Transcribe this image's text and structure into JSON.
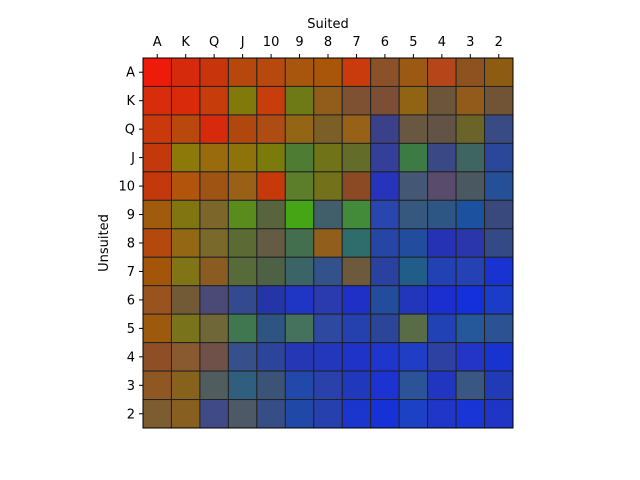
{
  "chart_data": {
    "type": "heatmap",
    "title": "",
    "xlabel": "Suited",
    "ylabel": "Unsuited",
    "x_ticks_position": "top",
    "grid": false,
    "legend": "none",
    "categories_x": [
      "A",
      "K",
      "Q",
      "J",
      "10",
      "9",
      "8",
      "7",
      "6",
      "5",
      "4",
      "3",
      "2"
    ],
    "categories_y": [
      "A",
      "K",
      "Q",
      "J",
      "10",
      "9",
      "8",
      "7",
      "6",
      "5",
      "4",
      "3",
      "2"
    ],
    "cell_border_color": "#222222",
    "cells": [
      [
        "#ee1a0a",
        "#d52b0c",
        "#c8350c",
        "#b7480d",
        "#b7480e",
        "#a8550d",
        "#a9560b",
        "#c93b0c",
        "#8b522a",
        "#9c5914",
        "#b4461a",
        "#8e5120",
        "#8e5b12"
      ],
      [
        "#d72d0c",
        "#d92a0a",
        "#c73c0b",
        "#817a0a",
        "#c73d0b",
        "#6e7a15",
        "#925d1b",
        "#7f5133",
        "#7d4e36",
        "#916414",
        "#6c5538",
        "#925a1b",
        "#715436"
      ],
      [
        "#c9390b",
        "#b8480c",
        "#d72a0d",
        "#b0470f",
        "#ad4d14",
        "#946514",
        "#7c5e27",
        "#986118",
        "#3b4188",
        "#6a5741",
        "#635346",
        "#6a6429",
        "#394b85"
      ],
      [
        "#c4390b",
        "#8d790a",
        "#9a6b0c",
        "#8d730a",
        "#7a7b0a",
        "#4f7c33",
        "#717318",
        "#636c28",
        "#333f98",
        "#3c7b44",
        "#3b4886",
        "#3e6562",
        "#2a4799"
      ],
      [
        "#c4390b",
        "#b1540c",
        "#a05414",
        "#9a6015",
        "#c5390b",
        "#5c7d29",
        "#737119",
        "#8c4a24",
        "#2534ba",
        "#445876",
        "#584b6c",
        "#4a5862",
        "#254f97"
      ],
      [
        "#a05c0c",
        "#807511",
        "#7d662a",
        "#5a8b1d",
        "#58643c",
        "#46a515",
        "#405f6a",
        "#438b39",
        "#2846ad",
        "#36577e",
        "#2d5684",
        "#1c519f",
        "#39487d"
      ],
      [
        "#b4480d",
        "#936714",
        "#79692a",
        "#5a6c34",
        "#635b43",
        "#446f4f",
        "#915e1b",
        "#2f6c6c",
        "#2645a5",
        "#224c9d",
        "#2632b4",
        "#2a36ac",
        "#334a87"
      ],
      [
        "#a35609",
        "#807417",
        "#8b5c21",
        "#566b39",
        "#4d6245",
        "#3b6469",
        "#33518a",
        "#6d5a3d",
        "#2b41a0",
        "#205d88",
        "#2242b3",
        "#2442b3",
        "#1833d0"
      ],
      [
        "#98531e",
        "#725a37",
        "#4a4a76",
        "#334a91",
        "#2435a8",
        "#1f35c4",
        "#2a3aaf",
        "#1f30c7",
        "#244c9d",
        "#2236bb",
        "#1b2fd1",
        "#1430dc",
        "#1a3cc8"
      ],
      [
        "#9e5a0c",
        "#79741c",
        "#6f6737",
        "#3f7850",
        "#2e5582",
        "#44725c",
        "#2e4aa0",
        "#2541ae",
        "#2b4599",
        "#586c45",
        "#2142b4",
        "#24589a",
        "#2b5292"
      ],
      [
        "#8f4f26",
        "#895a30",
        "#6f5149",
        "#35508a",
        "#2c449a",
        "#2537b4",
        "#2337bc",
        "#1f33c9",
        "#1e36cb",
        "#1f3ec5",
        "#2c41a2",
        "#2235c7",
        "#1833d0"
      ],
      [
        "#8f5722",
        "#86621c",
        "#505d5f",
        "#305e7e",
        "#3b5376",
        "#2249a9",
        "#2a40aa",
        "#2038bc",
        "#1c33d2",
        "#2c5298",
        "#2036c1",
        "#3a5682",
        "#213ab5"
      ],
      [
        "#7d5c2f",
        "#875f21",
        "#404a87",
        "#4d5966",
        "#364d86",
        "#2048a7",
        "#2641ad",
        "#1a36cc",
        "#1632d6",
        "#1d41c4",
        "#1f36c8",
        "#1935d5",
        "#1e35c5"
      ]
    ]
  }
}
